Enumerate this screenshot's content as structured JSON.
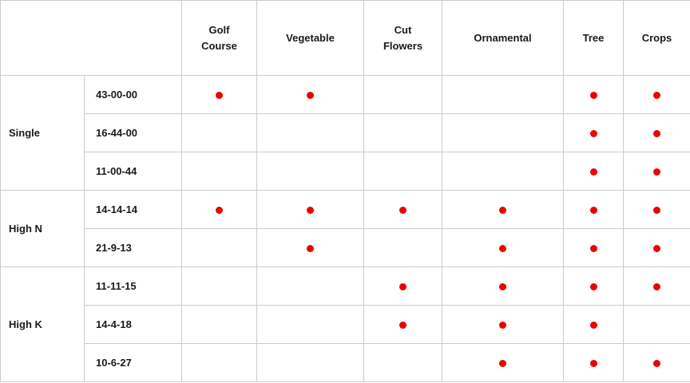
{
  "chart_data": {
    "type": "table",
    "title": "",
    "columns": [
      "Golf Course",
      "Vegetable",
      "Cut Flowers",
      "Ornamental",
      "Tree",
      "Crops"
    ],
    "groups": [
      {
        "label": "Single",
        "rows": [
          {
            "code": "43-00-00",
            "dots": [
              1,
              1,
              0,
              0,
              1,
              1
            ]
          },
          {
            "code": "16-44-00",
            "dots": [
              0,
              0,
              0,
              0,
              1,
              1
            ]
          },
          {
            "code": "11-00-44",
            "dots": [
              0,
              0,
              0,
              0,
              1,
              1
            ]
          }
        ]
      },
      {
        "label": "High N",
        "rows": [
          {
            "code": "14-14-14",
            "dots": [
              1,
              1,
              1,
              1,
              1,
              1
            ]
          },
          {
            "code": "21-9-13",
            "dots": [
              0,
              1,
              0,
              1,
              1,
              1
            ]
          }
        ]
      },
      {
        "label": "High K",
        "rows": [
          {
            "code": "11-11-15",
            "dots": [
              0,
              0,
              1,
              1,
              1,
              1
            ]
          },
          {
            "code": "14-4-18",
            "dots": [
              0,
              0,
              1,
              1,
              1,
              0
            ]
          },
          {
            "code": "10-6-27",
            "dots": [
              0,
              0,
              0,
              1,
              1,
              1
            ]
          }
        ]
      }
    ],
    "marker": "dot",
    "colors": {
      "dot": "#ee0000",
      "border": "#cccccc",
      "text": "#1a1a1a",
      "background": "#ffffff"
    }
  }
}
